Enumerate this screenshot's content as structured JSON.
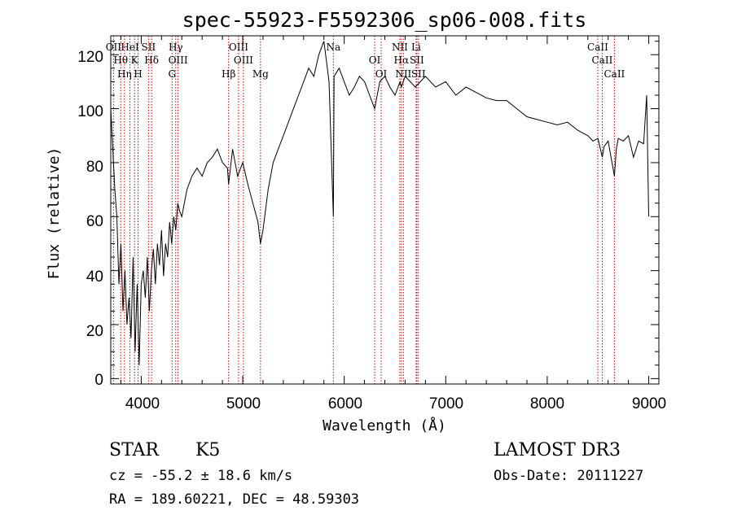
{
  "chart_data": {
    "type": "line",
    "title": "spec-55923-F5592306_sp06-008.fits",
    "xlabel": "Wavelength (Å)",
    "ylabel": "Flux (relative)",
    "xlim": [
      3700,
      9100
    ],
    "ylim": [
      -2,
      127
    ],
    "xticks": [
      "4000",
      "5000",
      "6000",
      "7000",
      "8000",
      "9000"
    ],
    "yticks": [
      "0",
      "20",
      "40",
      "60",
      "80",
      "100",
      "120"
    ],
    "series": [
      {
        "name": "flux",
        "x": [
          3700,
          3720,
          3740,
          3760,
          3780,
          3800,
          3820,
          3840,
          3860,
          3880,
          3900,
          3920,
          3940,
          3960,
          3980,
          4000,
          4020,
          4040,
          4060,
          4080,
          4100,
          4120,
          4140,
          4160,
          4180,
          4200,
          4220,
          4240,
          4260,
          4280,
          4300,
          4320,
          4340,
          4360,
          4380,
          4400,
          4450,
          4500,
          4550,
          4600,
          4650,
          4700,
          4750,
          4800,
          4850,
          4861,
          4900,
          4950,
          5000,
          5050,
          5100,
          5150,
          5175,
          5200,
          5250,
          5300,
          5350,
          5400,
          5450,
          5500,
          5550,
          5600,
          5650,
          5700,
          5750,
          5800,
          5850,
          5893,
          5900,
          5950,
          6000,
          6050,
          6100,
          6150,
          6200,
          6250,
          6300,
          6350,
          6400,
          6450,
          6500,
          6550,
          6563,
          6600,
          6650,
          6700,
          6750,
          6800,
          6900,
          7000,
          7100,
          7200,
          7300,
          7400,
          7500,
          7600,
          7700,
          7800,
          7900,
          8000,
          8100,
          8200,
          8300,
          8400,
          8450,
          8500,
          8542,
          8560,
          8600,
          8662,
          8680,
          8700,
          8750,
          8800,
          8850,
          8900,
          8950,
          8980,
          9000
        ],
        "values": [
          100,
          85,
          70,
          60,
          35,
          50,
          25,
          40,
          20,
          30,
          15,
          45,
          10,
          35,
          5,
          35,
          40,
          30,
          45,
          25,
          40,
          48,
          35,
          50,
          42,
          55,
          38,
          50,
          45,
          58,
          50,
          60,
          55,
          65,
          62,
          60,
          70,
          75,
          78,
          75,
          80,
          82,
          85,
          80,
          78,
          72,
          85,
          75,
          80,
          72,
          65,
          58,
          50,
          55,
          70,
          80,
          85,
          90,
          95,
          100,
          105,
          110,
          115,
          112,
          120,
          125,
          110,
          60,
          112,
          115,
          110,
          105,
          108,
          112,
          110,
          105,
          100,
          110,
          112,
          108,
          105,
          110,
          108,
          112,
          110,
          108,
          110,
          112,
          108,
          110,
          105,
          108,
          106,
          104,
          103,
          103,
          100,
          97,
          96,
          95,
          94,
          95,
          92,
          90,
          88,
          89,
          82,
          86,
          88,
          75,
          85,
          89,
          88,
          90,
          82,
          88,
          87,
          105,
          60
        ]
      }
    ],
    "spectral_lines": [
      {
        "wavelength": 3727,
        "label": "OII"
      },
      {
        "wavelength": 3798,
        "label": "Hθ"
      },
      {
        "wavelength": 3835,
        "label": "Hη"
      },
      {
        "wavelength": 3889,
        "label": "HeI"
      },
      {
        "wavelength": 3934,
        "label": "K"
      },
      {
        "wavelength": 3969,
        "label": "H"
      },
      {
        "wavelength": 4072,
        "label": "SII"
      },
      {
        "wavelength": 4102,
        "label": "Hδ"
      },
      {
        "wavelength": 4304,
        "label": "G"
      },
      {
        "wavelength": 4340,
        "label": "Hγ"
      },
      {
        "wavelength": 4363,
        "label": "OIII"
      },
      {
        "wavelength": 4861,
        "label": "Hβ"
      },
      {
        "wavelength": 4959,
        "label": "OIII"
      },
      {
        "wavelength": 5007,
        "label": "OIII"
      },
      {
        "wavelength": 5175,
        "label": "Mg"
      },
      {
        "wavelength": 5893,
        "label": "Na"
      },
      {
        "wavelength": 6300,
        "label": "OI"
      },
      {
        "wavelength": 6364,
        "label": "OI"
      },
      {
        "wavelength": 6548,
        "label": "NII"
      },
      {
        "wavelength": 6563,
        "label": "Hα"
      },
      {
        "wavelength": 6583,
        "label": "NII"
      },
      {
        "wavelength": 6708,
        "label": "Li"
      },
      {
        "wavelength": 6716,
        "label": "SII"
      },
      {
        "wavelength": 6731,
        "label": "SII"
      },
      {
        "wavelength": 8498,
        "label": "CaII"
      },
      {
        "wavelength": 8542,
        "label": "CaII"
      },
      {
        "wavelength": 8662,
        "label": "CaII"
      }
    ]
  },
  "info": {
    "class": "STAR",
    "subclass": "K5",
    "survey": "LAMOST DR3",
    "cz": "cz = -55.2 ± 18.6 km/s",
    "obs_date": "Obs-Date: 20111227",
    "coords": "RA = 189.60221, DEC =  48.59303"
  },
  "colors": {
    "line": "#000000",
    "marker": "#cc0000"
  }
}
